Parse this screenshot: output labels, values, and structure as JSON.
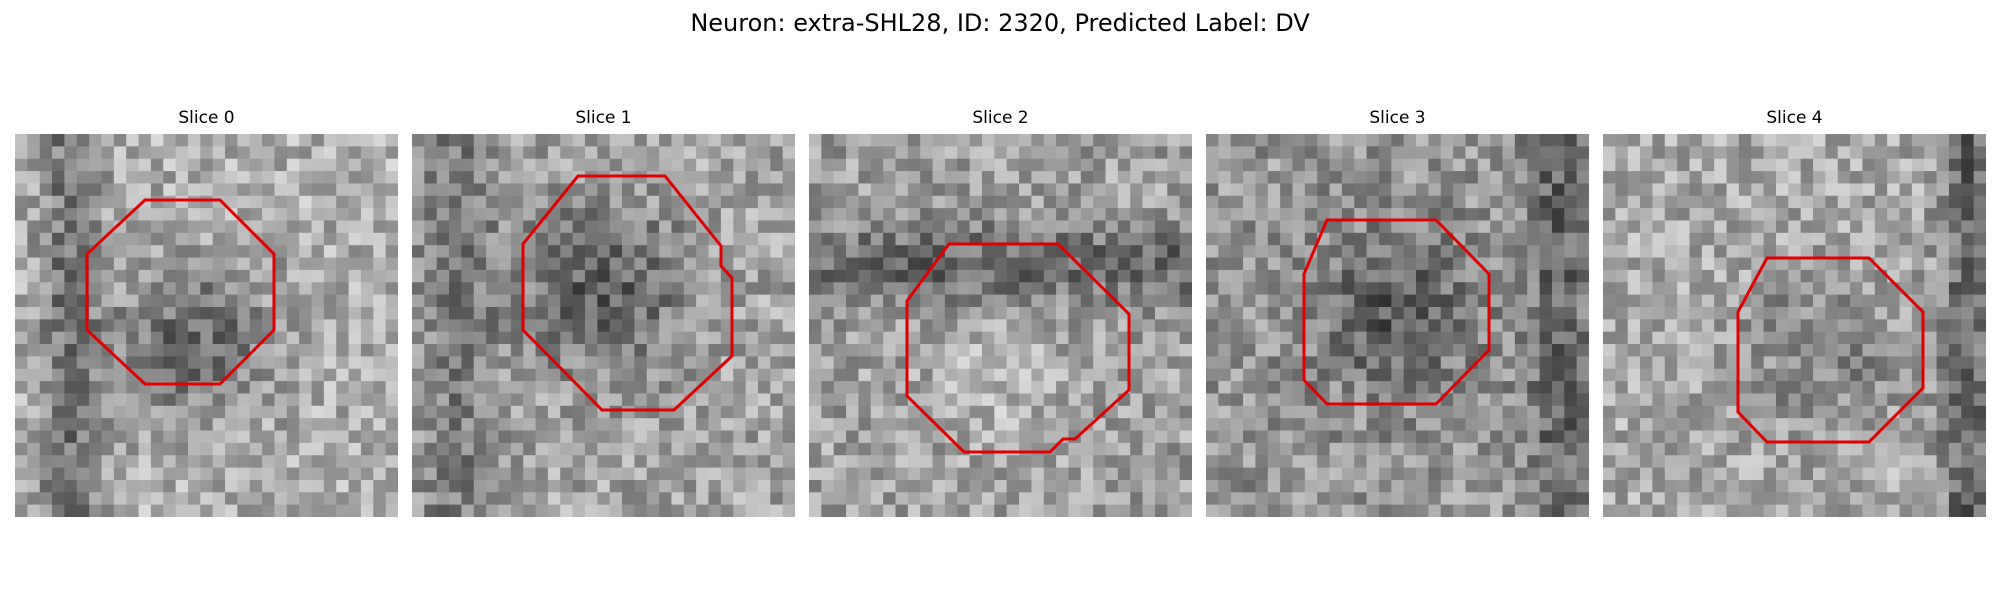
{
  "figure": {
    "title": "Neuron: extra-SHL28, ID: 2320, Predicted Label: DV"
  },
  "outline_color": "#e00000",
  "panels": [
    {
      "title": "Slice 0"
    },
    {
      "title": "Slice 1"
    },
    {
      "title": "Slice 2"
    },
    {
      "title": "Slice 3"
    },
    {
      "title": "Slice 4"
    }
  ]
}
